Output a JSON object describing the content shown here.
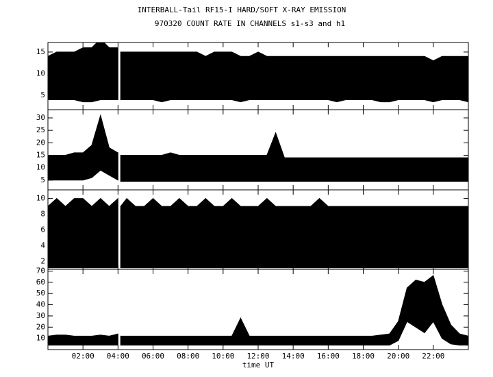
{
  "title": "INTERBALL-Tail RF15-I HARD/SOFT X-RAY EMISSION",
  "subtitle": "970320  COUNT RATE IN CHANNELS s1-s3 and h1",
  "chart_data": [
    {
      "type": "range",
      "xlim": [
        0,
        24
      ],
      "x": [
        0,
        0.5,
        1,
        1.5,
        2,
        2.5,
        3,
        3.5,
        4,
        4.05,
        4.15,
        4.5,
        5,
        5.5,
        6,
        6.5,
        7,
        7.5,
        8,
        8.5,
        9,
        9.5,
        10,
        10.5,
        11,
        11.5,
        12,
        12.5,
        13,
        13.5,
        14,
        14.5,
        15,
        15.5,
        16,
        16.5,
        17,
        17.5,
        18,
        18.5,
        19,
        19.5,
        20,
        20.5,
        21,
        21.5,
        22,
        22.5,
        23,
        23.5,
        24
      ],
      "high": [
        14,
        15,
        15,
        15,
        16,
        16,
        18,
        16,
        16,
        null,
        15,
        15,
        15,
        15,
        15,
        15,
        15,
        15,
        15,
        15,
        14,
        15,
        15,
        15,
        14,
        14,
        15,
        14,
        14,
        14,
        14,
        14,
        14,
        14,
        14,
        14,
        14,
        14,
        14,
        14,
        14,
        14,
        14,
        14,
        14,
        14,
        13,
        14,
        14,
        14,
        14
      ],
      "low": [
        4,
        4,
        4,
        4,
        3.5,
        3.5,
        4,
        4,
        4,
        null,
        4,
        4,
        4,
        4,
        4,
        3.5,
        4,
        4,
        4,
        4,
        4,
        4,
        4,
        4,
        3.5,
        4,
        4,
        4,
        4,
        4,
        4,
        4,
        4,
        4,
        4,
        3.5,
        4,
        4,
        4,
        4,
        3.5,
        3.5,
        4,
        4,
        4,
        4,
        3.5,
        4,
        4,
        4,
        3.5
      ],
      "ylim": [
        1.7,
        17.2
      ],
      "yticks": [
        5,
        10,
        15
      ]
    },
    {
      "type": "range",
      "xlim": [
        0,
        24
      ],
      "x": [
        0,
        0.5,
        1,
        1.5,
        2,
        2.5,
        3,
        3.5,
        4,
        4.05,
        4.15,
        4.5,
        5,
        5.5,
        6,
        6.5,
        7,
        7.5,
        8,
        8.5,
        9,
        9.5,
        10,
        10.5,
        11,
        11.5,
        12,
        12.5,
        13,
        13.5,
        14,
        14.5,
        15,
        15.5,
        16,
        16.5,
        17,
        17.5,
        18,
        18.5,
        19,
        19.5,
        20,
        20.5,
        21,
        21.5,
        22,
        22.5,
        23,
        23.5,
        24
      ],
      "high": [
        15,
        15,
        15,
        16,
        16,
        19,
        31,
        18,
        16,
        null,
        15,
        15,
        15,
        15,
        15,
        15,
        16,
        15,
        15,
        15,
        15,
        15,
        15,
        15,
        15,
        15,
        15,
        15,
        24,
        14,
        14,
        14,
        14,
        14,
        14,
        14,
        14,
        14,
        14,
        14,
        14,
        14,
        14,
        14,
        14,
        14,
        14,
        14,
        14,
        14,
        14
      ],
      "low": [
        5,
        5,
        5,
        5,
        5,
        6,
        9,
        7,
        5,
        null,
        4.5,
        4.5,
        4.5,
        4.5,
        4.5,
        4.5,
        4.5,
        4.5,
        4.5,
        4.5,
        4.5,
        4.5,
        4.5,
        4.5,
        4.5,
        4.5,
        4.5,
        4.5,
        4.5,
        4.5,
        4.5,
        4.5,
        4.5,
        4.5,
        4.5,
        4.5,
        4.5,
        4.5,
        4.5,
        4.5,
        4.5,
        4.5,
        4.5,
        4.5,
        4.5,
        4.5,
        4.5,
        4.5,
        4.5,
        4.5,
        4.5
      ],
      "ylim": [
        1.1,
        33.3
      ],
      "yticks": [
        5,
        10,
        15,
        20,
        25,
        30
      ]
    },
    {
      "type": "range",
      "xlim": [
        0,
        24
      ],
      "x": [
        0,
        0.5,
        1,
        1.5,
        2,
        2.5,
        3,
        3.5,
        4,
        4.05,
        4.15,
        4.5,
        5,
        5.5,
        6,
        6.5,
        7,
        7.5,
        8,
        8.5,
        9,
        9.5,
        10,
        10.5,
        11,
        11.5,
        12,
        12.5,
        13,
        13.5,
        14,
        14.5,
        15,
        15.5,
        16,
        16.5,
        17,
        17.5,
        18,
        18.5,
        19,
        19.5,
        20,
        20.5,
        21,
        21.5,
        22,
        22.5,
        23,
        23.5,
        24
      ],
      "high": [
        9,
        10,
        9,
        10,
        10,
        9,
        10,
        9,
        10,
        null,
        9,
        10,
        9,
        9,
        10,
        9,
        9,
        10,
        9,
        9,
        10,
        9,
        9,
        10,
        9,
        9,
        9,
        10,
        9,
        9,
        9,
        9,
        9,
        10,
        9,
        9,
        9,
        9,
        9,
        9,
        9,
        9,
        9,
        9,
        9,
        9,
        9,
        9,
        9,
        9,
        9
      ],
      "low": [
        1.2,
        1.2,
        1.2,
        1.2,
        1.2,
        1.2,
        1.2,
        1.2,
        1.2,
        null,
        1.2,
        1.2,
        1.2,
        1.2,
        1.2,
        1.2,
        1.2,
        1.2,
        1.2,
        1.2,
        1.2,
        1.2,
        1.2,
        1.2,
        1.2,
        1.2,
        1.2,
        1.2,
        1.2,
        1.2,
        1.2,
        1.2,
        1.2,
        1.2,
        1.2,
        1.2,
        1.2,
        1.2,
        1.2,
        1.2,
        1.2,
        1.2,
        1.2,
        1.2,
        1.2,
        1.2,
        1.2,
        1.2,
        1.2,
        1.2,
        1.2
      ],
      "ylim": [
        1.0,
        11.1
      ],
      "yticks": [
        2,
        4,
        6,
        8,
        10
      ]
    },
    {
      "type": "range",
      "xlim": [
        0,
        24
      ],
      "xlabel": "time UT",
      "xticks": [
        {
          "value": 2,
          "label": "02:00"
        },
        {
          "value": 4,
          "label": "04:00"
        },
        {
          "value": 6,
          "label": "06:00"
        },
        {
          "value": 8,
          "label": "08:00"
        },
        {
          "value": 10,
          "label": "10:00"
        },
        {
          "value": 12,
          "label": "12:00"
        },
        {
          "value": 14,
          "label": "14:00"
        },
        {
          "value": 16,
          "label": "16:00"
        },
        {
          "value": 18,
          "label": "18:00"
        },
        {
          "value": 20,
          "label": "20:00"
        },
        {
          "value": 22,
          "label": "22:00"
        }
      ],
      "x": [
        0,
        0.5,
        1,
        1.5,
        2,
        2.5,
        3,
        3.5,
        4,
        4.05,
        4.15,
        4.5,
        5,
        5.5,
        6,
        6.5,
        7,
        7.5,
        8,
        8.5,
        9,
        9.5,
        10,
        10.5,
        11,
        11.5,
        12,
        12.5,
        13,
        13.5,
        14,
        14.5,
        15,
        15.5,
        16,
        16.5,
        17,
        17.5,
        18,
        18.5,
        19,
        19.5,
        20,
        20.5,
        21,
        21.5,
        22,
        22.5,
        23,
        23.5,
        24
      ],
      "high": [
        12,
        13,
        13,
        12,
        12,
        12,
        13,
        12,
        14,
        null,
        12,
        12,
        12,
        12,
        12,
        12,
        12,
        12,
        12,
        12,
        12,
        12,
        12,
        12,
        28,
        12,
        12,
        12,
        12,
        12,
        12,
        12,
        12,
        12,
        12,
        12,
        12,
        12,
        12,
        12,
        13,
        14,
        25,
        55,
        62,
        60,
        66,
        40,
        22,
        14,
        12
      ],
      "low": [
        4,
        4,
        4,
        4,
        4,
        4,
        4,
        4,
        4,
        null,
        4,
        4,
        4,
        4,
        4,
        4,
        4,
        4,
        4,
        4,
        4,
        4,
        4,
        4,
        4,
        4,
        4,
        4,
        4,
        4,
        4,
        4,
        4,
        4,
        4,
        4,
        4,
        4,
        4,
        4,
        4,
        4,
        8,
        25,
        20,
        15,
        25,
        10,
        5,
        4,
        4
      ],
      "ylim": [
        0,
        71.5
      ],
      "yticks": [
        10,
        20,
        30,
        40,
        50,
        60,
        70
      ]
    }
  ]
}
